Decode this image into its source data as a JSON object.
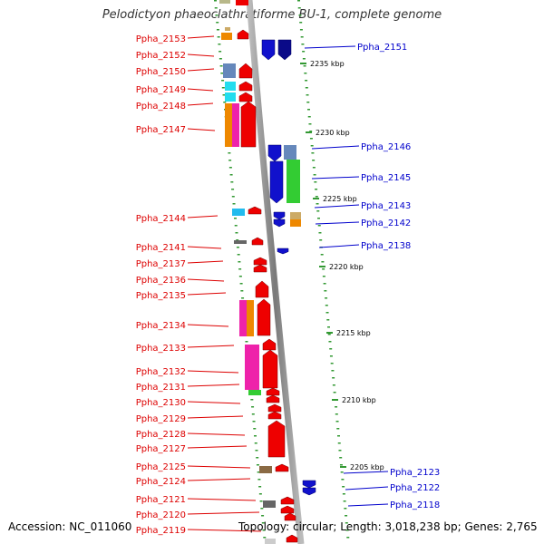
{
  "title": "Pelodictyon phaeoclathratiforme BU-1, complete genome",
  "footer": {
    "accession": "Accession: NC_011060",
    "summary": "Topology: circular; Length: 3,018,238 bp; Genes: 2,765"
  },
  "colors": {
    "left_label": "#dd0000",
    "right_label": "#0000cc",
    "backbone": "#888888",
    "tick": "#339933"
  },
  "scale_ticks": [
    {
      "label": "2235 kbp",
      "kbp": 2235
    },
    {
      "label": "2230 kbp",
      "kbp": 2230
    },
    {
      "label": "2225 kbp",
      "kbp": 2225
    },
    {
      "label": "2220 kbp",
      "kbp": 2220
    },
    {
      "label": "2215 kbp",
      "kbp": 2215
    },
    {
      "label": "2210 kbp",
      "kbp": 2210
    },
    {
      "label": "2205 kbp",
      "kbp": 2205
    }
  ],
  "left_genes": [
    "Ppha_2153",
    "Ppha_2152",
    "Ppha_2150",
    "Ppha_2149",
    "Ppha_2148",
    "Ppha_2147",
    "Ppha_2144",
    "Ppha_2141",
    "Ppha_2137",
    "Ppha_2136",
    "Ppha_2135",
    "Ppha_2134",
    "Ppha_2133",
    "Ppha_2132",
    "Ppha_2131",
    "Ppha_2130",
    "Ppha_2129",
    "Ppha_2128",
    "Ppha_2127",
    "Ppha_2125",
    "Ppha_2124",
    "Ppha_2121",
    "Ppha_2120",
    "Ppha_2119"
  ],
  "right_genes": [
    "Ppha_2151",
    "Ppha_2146",
    "Ppha_2145",
    "Ppha_2143",
    "Ppha_2142",
    "Ppha_2138",
    "Ppha_2123",
    "Ppha_2122",
    "Ppha_2118"
  ]
}
